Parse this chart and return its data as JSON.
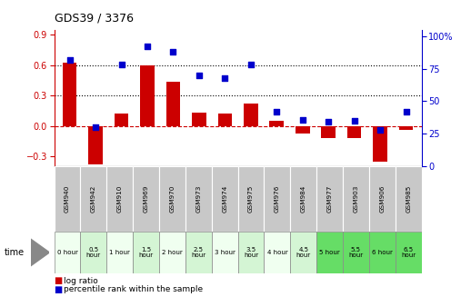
{
  "title": "GDS39 / 3376",
  "samples": [
    "GSM940",
    "GSM942",
    "GSM910",
    "GSM969",
    "GSM970",
    "GSM973",
    "GSM974",
    "GSM975",
    "GSM976",
    "GSM984",
    "GSM977",
    "GSM903",
    "GSM906",
    "GSM985"
  ],
  "time_labels": [
    "0 hour",
    "0.5\nhour",
    "1 hour",
    "1.5\nhour",
    "2 hour",
    "2.5\nhour",
    "3 hour",
    "3.5\nhour",
    "4 hour",
    "4.5\nhour",
    "5 hour",
    "5.5\nhour",
    "6 hour",
    "6.5\nhour"
  ],
  "log_ratio": [
    0.62,
    -0.38,
    0.12,
    0.6,
    0.44,
    0.13,
    0.12,
    0.22,
    0.05,
    -0.08,
    -0.12,
    -0.12,
    -0.35,
    -0.04
  ],
  "percentile": [
    82,
    30,
    78,
    92,
    88,
    70,
    68,
    78,
    42,
    36,
    34,
    35,
    28,
    42
  ],
  "bar_color": "#cc0000",
  "dot_color": "#0000cc",
  "ylim_left": [
    -0.4,
    0.95
  ],
  "ylim_right": [
    0,
    105
  ],
  "yticks_left": [
    -0.3,
    0.0,
    0.3,
    0.6,
    0.9
  ],
  "yticks_right": [
    0,
    25,
    50,
    75,
    100
  ],
  "hline_y": [
    0.3,
    0.6
  ],
  "zero_line_y": 0.0,
  "gsm_bg": "#c8c8c8",
  "time_colors": [
    "#f0fff0",
    "#d4f5d4",
    "#f0fff0",
    "#d4f5d4",
    "#f0fff0",
    "#d4f5d4",
    "#f0fff0",
    "#d4f5d4",
    "#f0fff0",
    "#d4f5d4",
    "#66dd66",
    "#66dd66",
    "#66dd66",
    "#66dd66"
  ],
  "background_color": "#ffffff"
}
